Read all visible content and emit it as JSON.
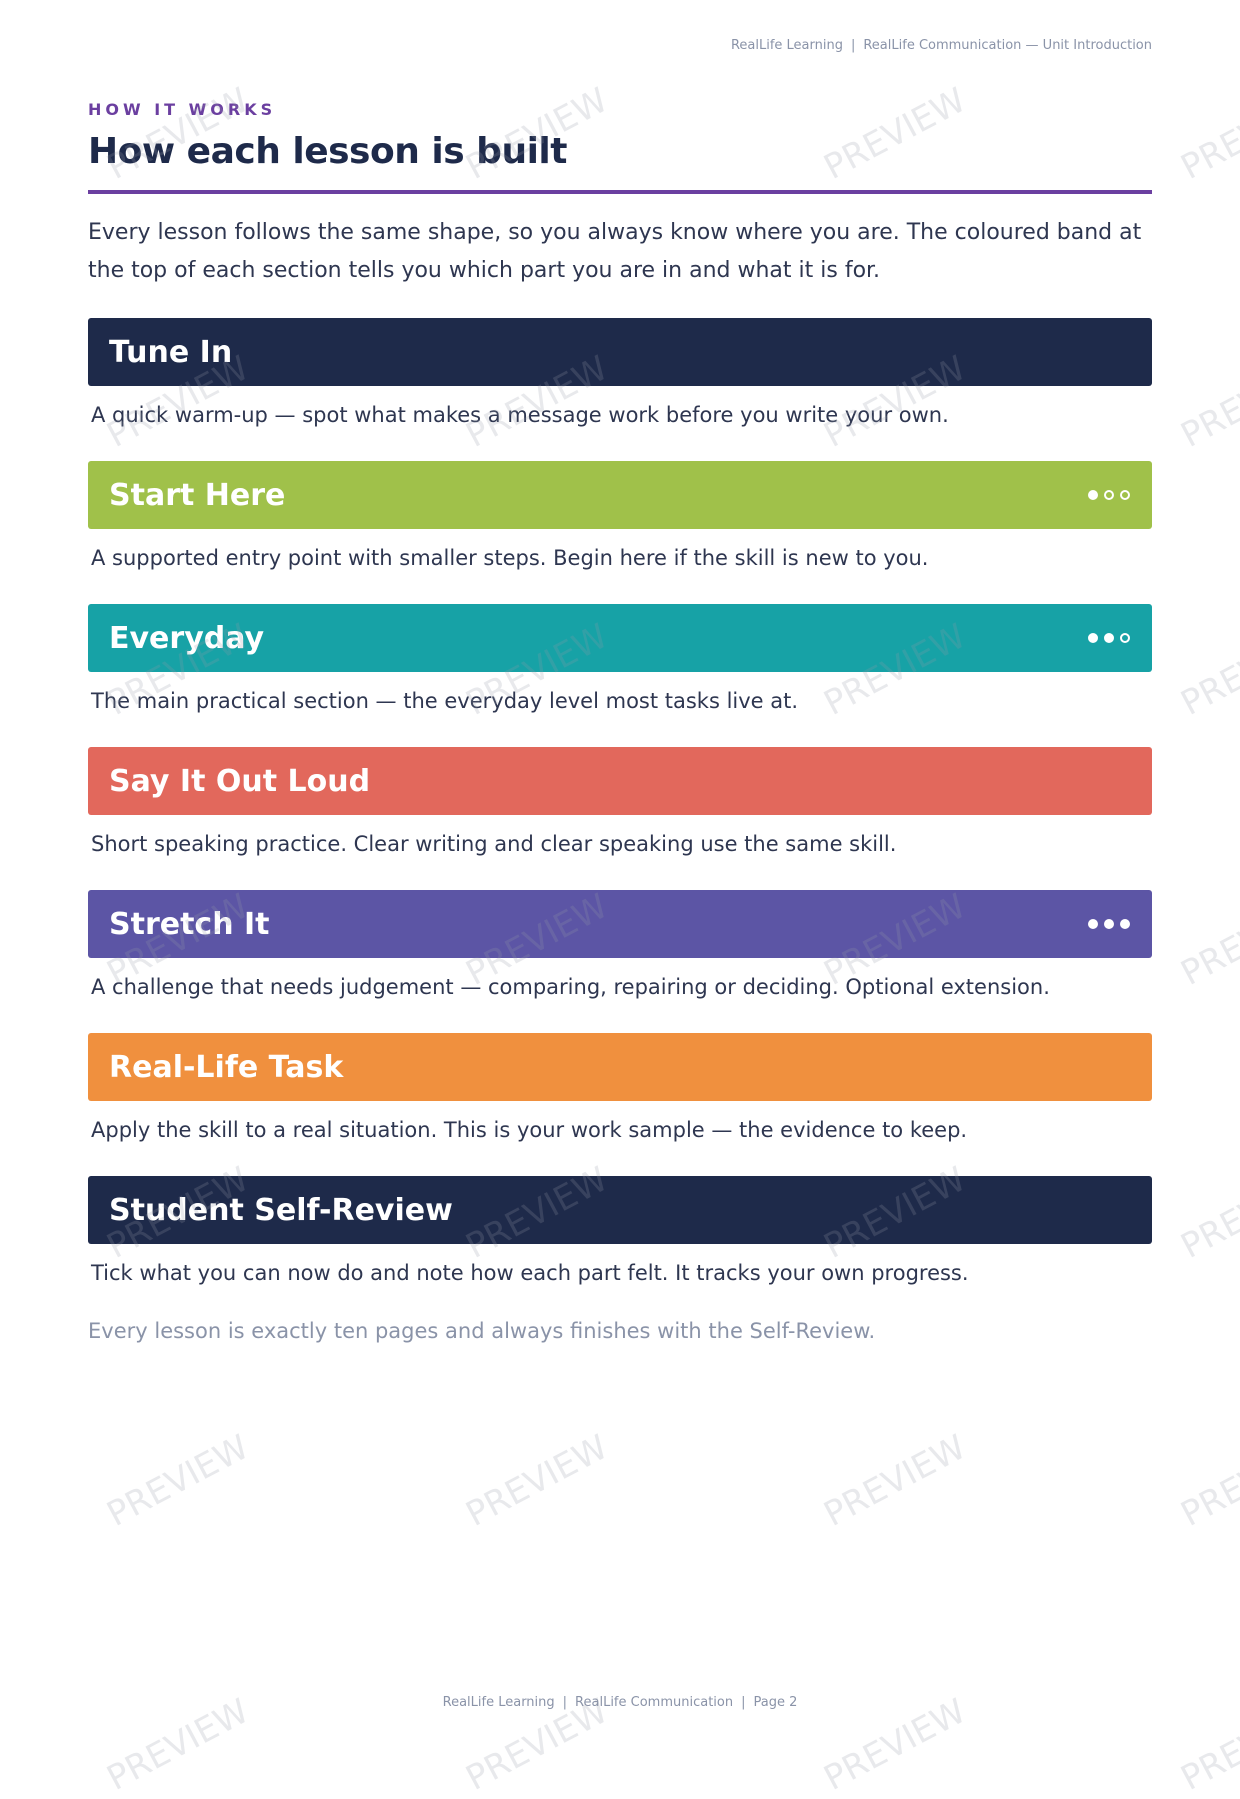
{
  "header": {
    "items": [
      "RealLife Learning",
      "RealLife Communication — Unit Introduction"
    ]
  },
  "eyebrow": "HOW IT WORKS",
  "title": "How each lesson is built",
  "intro": "Every lesson follows the same shape, so you always know where you are. The coloured band at the top of each section tells you which part you are in and what it is for.",
  "sections": [
    {
      "name": "Tune In",
      "description": "A quick warm-up — spot what makes a message work before you write your own."
    },
    {
      "name": "Start Here",
      "description": "A supported entry point with smaller steps. Begin here if the skill is new to you."
    },
    {
      "name": "Everyday",
      "description": "The main practical section — the everyday level most tasks live at."
    },
    {
      "name": "Say It Out Loud",
      "description": "Short speaking practice. Clear writing and clear speaking use the same skill."
    },
    {
      "name": "Stretch It",
      "description": "A challenge that needs judgement — comparing, repairing or deciding. Optional extension."
    },
    {
      "name": "Real-Life Task",
      "description": "Apply the skill to a real situation. This is your work sample — the evidence to keep."
    },
    {
      "name": "Student Self-Review",
      "description": "Tick what you can now do and note how each part felt. It tracks your own progress."
    }
  ],
  "note": "Every lesson is exactly ten pages and always finishes with the Self-Review.",
  "footer": {
    "items": [
      "RealLife Learning",
      "RealLife Communication",
      "Page 2"
    ]
  },
  "watermark": "PREVIEW"
}
